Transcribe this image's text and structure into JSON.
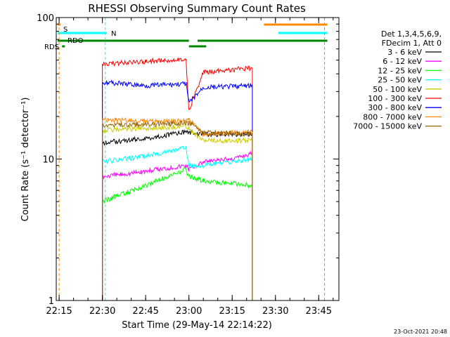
{
  "chart_data": {
    "type": "line",
    "title": "RHESSI Observing Summary Count Rates",
    "xlabel": "Start Time (29-May-14 22:14:22)",
    "ylabel": "Count Rate (s⁻¹ detector⁻¹)",
    "yscale": "log",
    "xlim": [
      "22:14",
      "23:52"
    ],
    "ylim": [
      1,
      100
    ],
    "x_ticks": [
      "22:15",
      "22:30",
      "22:45",
      "23:00",
      "23:15",
      "23:30",
      "23:45"
    ],
    "y_ticks": [
      1,
      10,
      100
    ],
    "legend_header": [
      "Det 1,3,4,5,6,9,",
      "FDecim 1, Att 0"
    ],
    "legend_position": "right",
    "footer_date": "23-Oct-2021 20:48",
    "colors": {
      "3 - 6 keV": "#000000",
      "6 - 12 keV": "#ff00ff",
      "12 - 25 keV": "#00ff00",
      "25 - 50 keV": "#00ffff",
      "50 - 100 keV": "#cccc00",
      "100 - 300 keV": "#ff0000",
      "300 - 800 keV": "#0000ff",
      "800 - 7000 keV": "#ff8800",
      "7000 - 15000 keV": "#996600"
    },
    "series": [
      {
        "name": "3 - 6 keV",
        "points": [
          [
            "22:30",
            13
          ],
          [
            "22:45",
            14
          ],
          [
            "22:59",
            15.5
          ],
          [
            "23:00",
            15.5
          ],
          [
            "23:05",
            15
          ],
          [
            "23:22",
            15
          ]
        ]
      },
      {
        "name": "6 - 12 keV",
        "points": [
          [
            "22:30",
            7.5
          ],
          [
            "22:45",
            8.2
          ],
          [
            "22:59",
            9
          ],
          [
            "23:00",
            8.5
          ],
          [
            "23:05",
            9.5
          ],
          [
            "23:15",
            10
          ],
          [
            "23:22",
            11
          ]
        ]
      },
      {
        "name": "12 - 25 keV",
        "points": [
          [
            "22:30",
            5
          ],
          [
            "22:45",
            6.5
          ],
          [
            "22:59",
            8.5
          ],
          [
            "23:00",
            7.5
          ],
          [
            "23:05",
            7
          ],
          [
            "23:22",
            6.5
          ]
        ]
      },
      {
        "name": "25 - 50 keV",
        "points": [
          [
            "22:30",
            9.5
          ],
          [
            "22:45",
            10.5
          ],
          [
            "22:59",
            12
          ],
          [
            "23:00",
            9
          ],
          [
            "23:05",
            9
          ],
          [
            "23:22",
            10
          ]
        ]
      },
      {
        "name": "50 - 100 keV",
        "points": [
          [
            "22:30",
            16
          ],
          [
            "22:45",
            16.5
          ],
          [
            "22:59",
            17
          ],
          [
            "23:00",
            16.5
          ],
          [
            "23:05",
            13.5
          ],
          [
            "23:22",
            13.5
          ]
        ]
      },
      {
        "name": "100 - 300 keV",
        "points": [
          [
            "22:30",
            47
          ],
          [
            "22:45",
            49
          ],
          [
            "22:59",
            51
          ],
          [
            "23:00",
            22
          ],
          [
            "23:05",
            41
          ],
          [
            "23:22",
            44
          ]
        ]
      },
      {
        "name": "300 - 800 keV",
        "points": [
          [
            "22:30",
            35
          ],
          [
            "22:45",
            33
          ],
          [
            "22:59",
            34
          ],
          [
            "23:00",
            25
          ],
          [
            "23:05",
            32
          ],
          [
            "23:22",
            33
          ]
        ]
      },
      {
        "name": "800 - 7000 keV",
        "points": [
          [
            "22:30",
            19
          ],
          [
            "22:45",
            18.5
          ],
          [
            "22:59",
            18.5
          ],
          [
            "23:00",
            19
          ],
          [
            "23:05",
            15
          ],
          [
            "23:22",
            15.5
          ]
        ]
      },
      {
        "name": "7000 - 15000 keV",
        "points": [
          [
            "22:30",
            17.5
          ],
          [
            "22:45",
            17.5
          ],
          [
            "22:59",
            18
          ],
          [
            "23:00",
            18
          ],
          [
            "23:05",
            15.5
          ],
          [
            "23:22",
            15
          ]
        ]
      }
    ],
    "flags": [
      {
        "label": "S",
        "color": "#ff8800",
        "segments": [
          [
            "22:14:30",
            "22:15:30"
          ],
          [
            "23:26",
            "23:48"
          ]
        ]
      },
      {
        "label": "N",
        "color": "#00ffff",
        "segments": [
          [
            "22:14:30",
            "22:31:30"
          ],
          [
            "23:31",
            "23:48"
          ]
        ]
      },
      {
        "label": "RDO",
        "color": "#008800",
        "segments": [
          [
            "22:14:30",
            "23:00"
          ],
          [
            "23:03",
            "23:48"
          ]
        ]
      },
      {
        "label": "RDS",
        "color": "#008800",
        "segments": [
          [
            "22:16",
            "22:17"
          ],
          [
            "23:00",
            "23:06"
          ]
        ]
      }
    ],
    "dashed_markers": [
      {
        "color": "#ff8800",
        "x": [
          "22:15",
          "23:47"
        ]
      },
      {
        "color": "#00ffff",
        "x": [
          "22:31"
        ]
      }
    ]
  }
}
